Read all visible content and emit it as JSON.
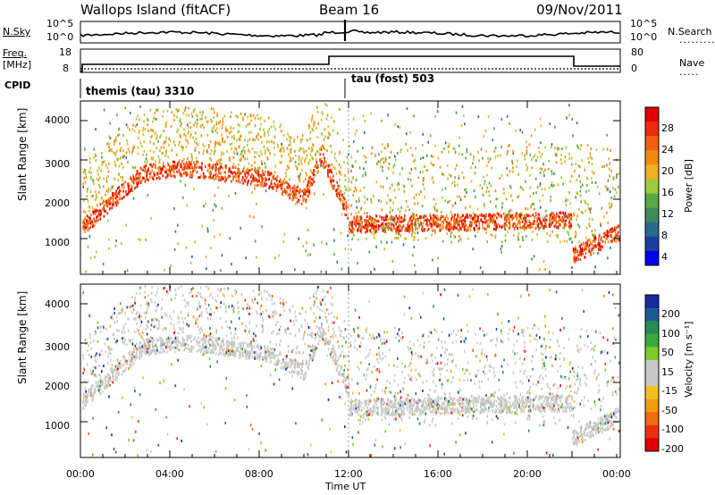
{
  "header": {
    "station": "Wallops Island (fitACF)",
    "beam": "Beam 16",
    "date": "09/Nov/2011"
  },
  "top_panels": {
    "nsky_label": "N.Sky",
    "nsky_ticks": [
      "10^5",
      "10^0"
    ],
    "nsearch_label": "N.Search",
    "nsearch_ticks": [
      "10^5",
      "10^0"
    ],
    "freq_label_1": "Freq.",
    "freq_label_2": "[MHz]",
    "freq_ticks": [
      "18",
      "8"
    ],
    "nave_label": "Nave",
    "nave_ticks": [
      "80",
      "0"
    ],
    "cpid_label": "CPID",
    "cpid_entries": [
      "themis (tau) 3310",
      "tau (fost) 503"
    ]
  },
  "chart_data": [
    {
      "type": "heatmap",
      "name": "power",
      "ylabel": "Slant Range [km]",
      "y_ticks": [
        "4000",
        "3000",
        "2000",
        "1000"
      ],
      "colorbar_label": "Power [dB]",
      "colorbar_ticks": [
        "28",
        "24",
        "20",
        "16",
        "12",
        "8",
        "4"
      ],
      "colorbar_colors": [
        "#0000ee",
        "#1c3fa6",
        "#2a6b8a",
        "#3d8a5a",
        "#58a84a",
        "#9ccc3a",
        "#f0b020",
        "#f08a10",
        "#f06010",
        "#ee2a10",
        "#e00000"
      ]
    },
    {
      "type": "heatmap",
      "name": "velocity",
      "ylabel": "Slant Range [km]",
      "y_ticks": [
        "4000",
        "3000",
        "2000",
        "1000"
      ],
      "colorbar_label": "Velocity [m s⁻¹]",
      "colorbar_ticks": [
        "200",
        "100",
        "50",
        "15",
        "-15",
        "-50",
        "-100",
        "-200"
      ],
      "colorbar_colors": [
        "#1a2aa0",
        "#1f5a96",
        "#2a8a5a",
        "#3aaa3a",
        "#7ccc2a",
        "#c8c8c8",
        "#c8c8c8",
        "#f0c020",
        "#f09a10",
        "#f06a10",
        "#ee3010",
        "#e00000"
      ]
    }
  ],
  "x_axis": {
    "ticks": [
      "00:00",
      "04:00",
      "08:00",
      "12:00",
      "16:00",
      "20:00",
      "00:00"
    ],
    "label": "Time UT"
  }
}
